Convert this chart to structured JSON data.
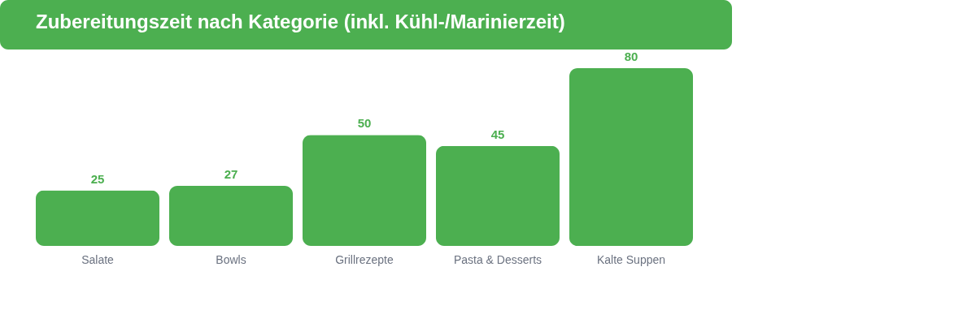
{
  "chart_data": {
    "type": "bar",
    "title": "Zubereitungszeit nach Kategorie (inkl. Kühl-/Marinierzeit)",
    "categories": [
      "Salate",
      "Bowls",
      "Grillrezepte",
      "Pasta & Desserts",
      "Kalte Suppen"
    ],
    "values": [
      25,
      27,
      50,
      45,
      80
    ],
    "color": "#4caf50",
    "data_labels": true,
    "grid": false
  }
}
